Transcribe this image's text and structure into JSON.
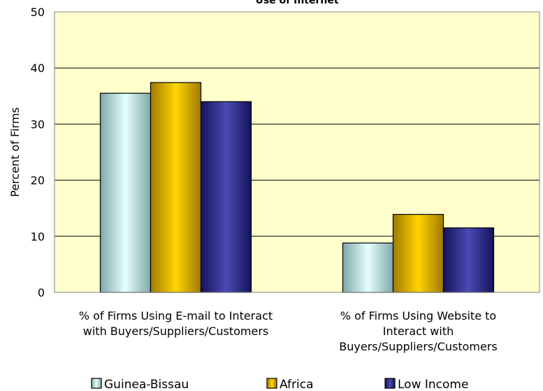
{
  "chart_data": {
    "type": "bar",
    "title": "Use of Internet",
    "ylabel": "Percent of Firms",
    "xlabel": "",
    "ylim": [
      0,
      50
    ],
    "yticks": [
      0,
      10,
      20,
      30,
      40,
      50
    ],
    "grid": true,
    "legend_position": "bottom",
    "plot_background": "#FFFFCC",
    "categories": [
      "% of Firms Using E-mail to Interact with Buyers/Suppliers/Customers",
      "% of Firms Using Website to Interact with Buyers/Suppliers/Customers"
    ],
    "category_lines": [
      [
        "% of Firms Using E-mail to Interact",
        "with Buyers/Suppliers/Customers"
      ],
      [
        "% of Firms Using Website to",
        "Interact with",
        "Buyers/Suppliers/Customers"
      ]
    ],
    "series": [
      {
        "name": "Guinea-Bissau",
        "color": "#BFF5F5",
        "values": [
          35.5,
          8.8
        ]
      },
      {
        "name": "Africa",
        "color": "#FFCC00",
        "values": [
          37.4,
          13.9
        ]
      },
      {
        "name": "Low Income",
        "color": "#2E2E8C",
        "values": [
          34.0,
          11.5
        ]
      }
    ]
  }
}
